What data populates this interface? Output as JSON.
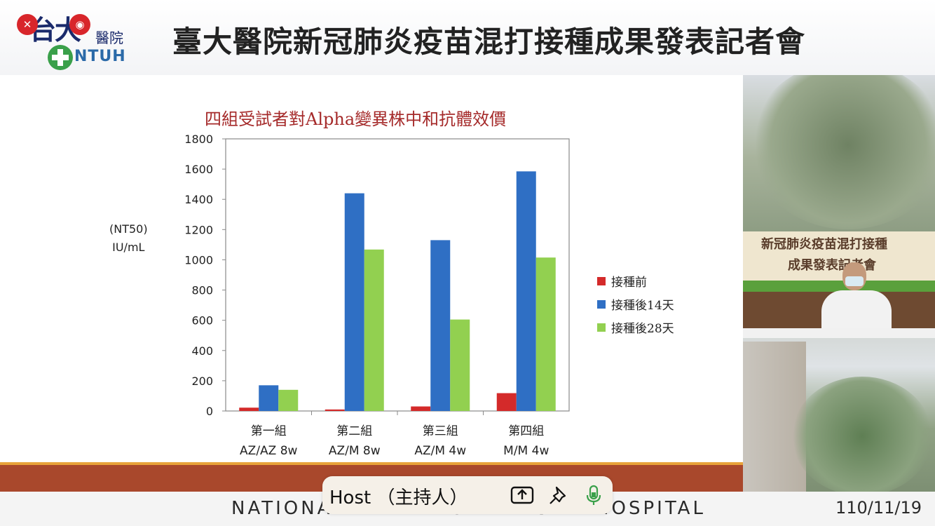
{
  "header": {
    "title": "臺大醫院新冠肺炎疫苗混打接種成果發表記者會",
    "logo": {
      "cn": "台大",
      "hosp": "醫院",
      "en": "NTUH"
    }
  },
  "window_controls": {
    "close_icon": "close-icon",
    "pip_icon": "picture-in-picture-icon"
  },
  "slide": {
    "unit_line1": "(NT50)",
    "unit_line2": "IU/mL"
  },
  "chart_data": {
    "type": "bar",
    "title": "四組受試者對Alpha變異株中和抗體效價",
    "ylabel": "(NT50) IU/mL",
    "ylim": [
      0,
      1800
    ],
    "yticks": [
      "0",
      "200",
      "400",
      "600",
      "800",
      "1000",
      "1200",
      "1400",
      "1600",
      "1800"
    ],
    "yticks_values": [
      0,
      200,
      400,
      600,
      800,
      1000,
      1200,
      1400,
      1600,
      1800
    ],
    "categories": [
      "第一組",
      "第二組",
      "第三組",
      "第四組"
    ],
    "category_sublabels": [
      "AZ/AZ 8w",
      "AZ/M 8w",
      "AZ/M 4w",
      "M/M 4w"
    ],
    "series": [
      {
        "name": "接種前",
        "color": "#d42a2a",
        "values": [
          22,
          10,
          30,
          118
        ]
      },
      {
        "name": "接種後14天",
        "color": "#2f6fc4",
        "values": [
          170,
          1440,
          1130,
          1585
        ]
      },
      {
        "name": "接種後28天",
        "color": "#92d050",
        "values": [
          140,
          1068,
          605,
          1015
        ]
      }
    ],
    "legend_position": "right",
    "grid": false
  },
  "footer": {
    "text": "NATIONAL TAIWAN UNIVERSITY HOSPITAL",
    "date": "110/11/19"
  },
  "speaker": {
    "banner_line1": "新冠肺炎疫苗混打接種",
    "banner_line2": "成果發表記者會"
  },
  "host_bar": {
    "label": "Host （主持人）",
    "icons": [
      "share-screen-icon",
      "pin-icon",
      "microphone-icon"
    ]
  }
}
